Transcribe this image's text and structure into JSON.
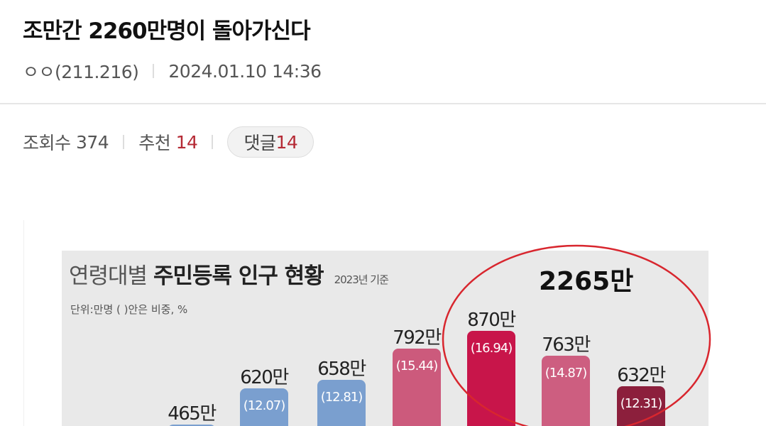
{
  "post": {
    "title": "조만간 2260만명이 돌아가신다",
    "author": "ㅇㅇ(211.216)",
    "datetime": "2024.01.10 14:36",
    "views_label": "조회수",
    "views": "374",
    "recommend_label": "추천",
    "recommend": "14",
    "comments_label": "댓글",
    "comments": "14",
    "accent_color": "#b52a35"
  },
  "image": {
    "title_light": "연령대별",
    "title_bold": "주민등록 인구 현황",
    "basis": "2023년 기준",
    "unit": "단위:만명 ( )안은 비중, %",
    "highlight_total": "2265만",
    "highlight_color": "#d8262e",
    "chart_data": {
      "type": "bar",
      "values": [
        465,
        620,
        658,
        792,
        870,
        763,
        632
      ],
      "labels": [
        "465만",
        "620만",
        "658만",
        "792만",
        "870만",
        "763만",
        "632만"
      ],
      "shares": [
        "",
        "(12.07)",
        "(12.81)",
        "(15.44)",
        "(16.94)",
        "(14.87)",
        "(12.31)"
      ],
      "colors": [
        "#7a9fcf",
        "#7a9fcf",
        "#7a9fcf",
        "#cc5a7c",
        "#c8154a",
        "#cd5e80",
        "#8c1f3c"
      ]
    }
  }
}
